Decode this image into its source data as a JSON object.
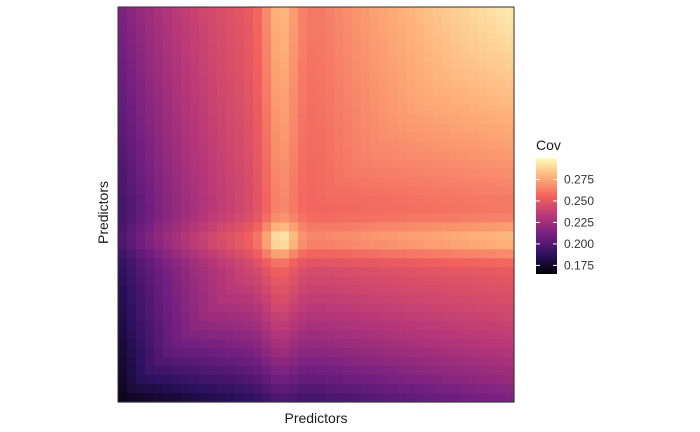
{
  "chart_data": {
    "type": "heatmap",
    "xlabel": "Predictors",
    "ylabel": "Predictors",
    "legend": {
      "title": "Cov",
      "position": "right",
      "range": [
        0.165,
        0.3
      ],
      "ticks": [
        {
          "value": 0.175,
          "label": "0.175"
        },
        {
          "value": 0.2,
          "label": "0.200"
        },
        {
          "value": 0.225,
          "label": "0.225"
        },
        {
          "value": 0.25,
          "label": "0.250"
        },
        {
          "value": 0.275,
          "label": "0.275"
        }
      ]
    },
    "colorscale": [
      "#000004",
      "#2c115f",
      "#721f81",
      "#b73779",
      "#f1605d",
      "#feaf77",
      "#fcfdbf"
    ],
    "grid": false,
    "x_ticks_shown": false,
    "y_ticks_shown": false
  }
}
